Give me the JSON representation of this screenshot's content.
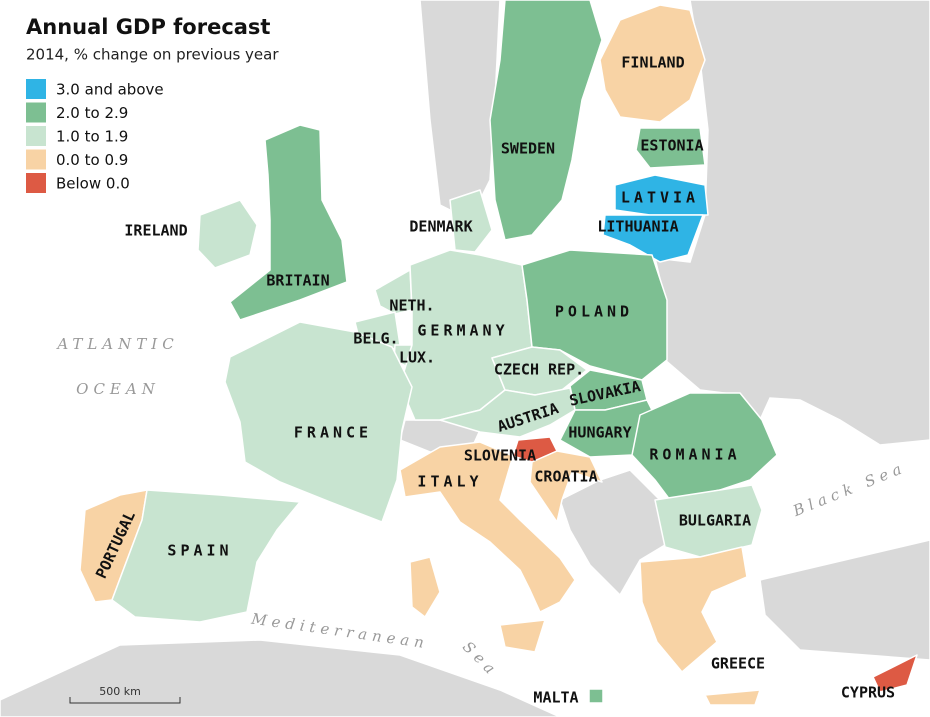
{
  "header": {
    "title": "Annual GDP forecast",
    "subtitle": "2014, % change on previous year"
  },
  "legend": [
    {
      "label": "3.0 and above",
      "color": "#2fb4e5"
    },
    {
      "label": "2.0 to 2.9",
      "color": "#7dbf92"
    },
    {
      "label": "1.0 to 1.9",
      "color": "#c8e4d0"
    },
    {
      "label": "0.0 to 0.9",
      "color": "#f8d3a5"
    },
    {
      "label": "Below 0.0",
      "color": "#dd5a44"
    }
  ],
  "countries": [
    {
      "name": "FINLAND",
      "class": 3
    },
    {
      "name": "SWEDEN",
      "class": 1
    },
    {
      "name": "ESTONIA",
      "class": 1
    },
    {
      "name": "LATVIA",
      "class": 0
    },
    {
      "name": "LITHUANIA",
      "class": 0
    },
    {
      "name": "IRELAND",
      "class": 2
    },
    {
      "name": "BRITAIN",
      "class": 1
    },
    {
      "name": "DENMARK",
      "class": 2
    },
    {
      "name": "NETH.",
      "class": 2
    },
    {
      "name": "BELG.",
      "class": 2
    },
    {
      "name": "LUX.",
      "class": 2
    },
    {
      "name": "GERMANY",
      "class": 2
    },
    {
      "name": "POLAND",
      "class": 1
    },
    {
      "name": "CZECH REP.",
      "class": 2
    },
    {
      "name": "SLOVAKIA",
      "class": 1
    },
    {
      "name": "AUSTRIA",
      "class": 2
    },
    {
      "name": "HUNGARY",
      "class": 1
    },
    {
      "name": "FRANCE",
      "class": 2
    },
    {
      "name": "SLOVENIA",
      "class": 4
    },
    {
      "name": "CROATIA",
      "class": 3
    },
    {
      "name": "ROMANIA",
      "class": 1
    },
    {
      "name": "ITALY",
      "class": 3
    },
    {
      "name": "BULGARIA",
      "class": 2
    },
    {
      "name": "PORTUGAL",
      "class": 3
    },
    {
      "name": "SPAIN",
      "class": 2
    },
    {
      "name": "GREECE",
      "class": 3
    },
    {
      "name": "MALTA",
      "class": 1
    },
    {
      "name": "CYPRUS",
      "class": 4
    }
  ],
  "seas": [
    "ATLANTIC",
    "OCEAN",
    "Mediterranean",
    "Sea",
    "Black Sea"
  ],
  "scale": "500 km"
}
